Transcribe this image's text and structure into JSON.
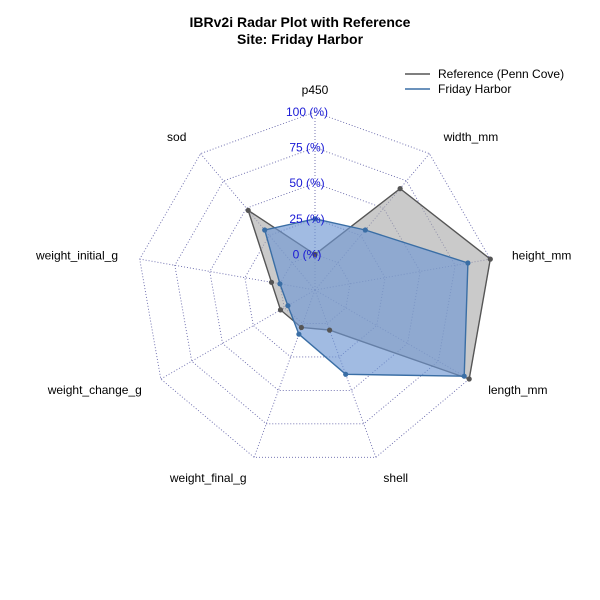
{
  "chart_data": {
    "type": "radar",
    "title": "IBRv2i Radar Plot with Reference",
    "subtitle": "Site: Friday Harbor",
    "axes": [
      "p450",
      "width_mm",
      "height_mm",
      "length_mm",
      "shell",
      "weight_final_g",
      "weight_change_g",
      "weight_initial_g",
      "sod"
    ],
    "ticks": [
      {
        "value": 0,
        "label": "0 (%)"
      },
      {
        "value": 25,
        "label": "25 (%)"
      },
      {
        "value": 50,
        "label": "50 (%)"
      },
      {
        "value": 75,
        "label": "75 (%)"
      },
      {
        "value": 100,
        "label": "100 (%)"
      }
    ],
    "range": [
      -25,
      100
    ],
    "grid_levels": [
      -25,
      0,
      25,
      50,
      75,
      100
    ],
    "legend_position": "top-right",
    "series": [
      {
        "name": "Reference (Penn Cove)",
        "values": [
          0,
          68,
          100,
          100,
          5,
          3,
          3,
          6,
          48
        ],
        "stroke": "#555555",
        "fill": "#a6a6a6",
        "point_color": "#555555"
      },
      {
        "name": "Friday Harbor",
        "values": [
          25,
          30,
          84,
          96,
          38,
          8,
          -3,
          0,
          30
        ],
        "stroke": "#3a6ea5",
        "fill": "#6e97d3",
        "point_color": "#3a6ea5"
      }
    ],
    "colors": {
      "grid": "#6666aa",
      "tick_label": "#1a1ad6"
    }
  }
}
